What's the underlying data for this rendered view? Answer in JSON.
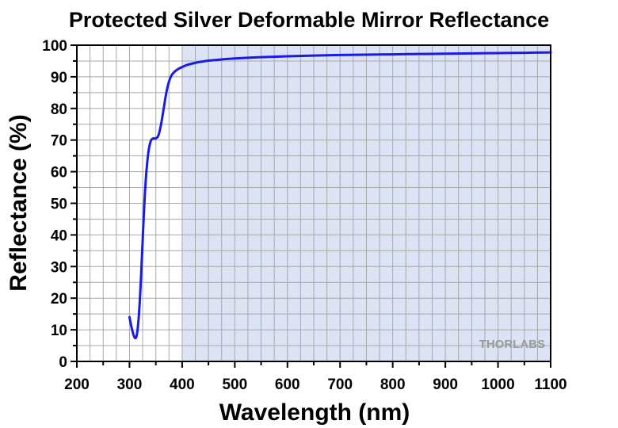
{
  "chart_data": {
    "type": "line",
    "title": "Protected Silver Deformable Mirror Reflectance",
    "xlabel": "Wavelength (nm)",
    "ylabel": "Reflectance (%)",
    "xlim": [
      200,
      1100
    ],
    "ylim": [
      0,
      100
    ],
    "x_ticks": [
      "200",
      "300",
      "400",
      "500",
      "600",
      "700",
      "800",
      "900",
      "1000",
      "1100"
    ],
    "y_ticks": [
      "0",
      "10",
      "20",
      "30",
      "40",
      "50",
      "60",
      "70",
      "80",
      "90",
      "100"
    ],
    "grid": true,
    "shaded_region": {
      "x_start": 400,
      "x_end": 1100,
      "color": "#dbe3f5"
    },
    "watermark": "THORLABS",
    "series": [
      {
        "color": "#1a1ae6",
        "x": [
          300,
          305,
          310,
          314,
          318,
          322,
          326,
          330,
          335,
          340,
          345,
          350,
          355,
          360,
          365,
          370,
          375,
          380,
          385,
          390,
          395,
          400,
          410,
          420,
          430,
          450,
          475,
          500,
          550,
          600,
          650,
          700,
          750,
          800,
          850,
          900,
          950,
          1000,
          1050,
          1100
        ],
        "y": [
          14,
          10,
          7.5,
          8.5,
          15,
          27,
          42,
          55,
          65,
          69.5,
          70.5,
          70.5,
          71.5,
          75,
          80,
          85,
          88.5,
          90.5,
          91.5,
          92.2,
          92.7,
          93.1,
          93.8,
          94.2,
          94.6,
          95.1,
          95.5,
          95.8,
          96.2,
          96.5,
          96.7,
          96.9,
          97.0,
          97.1,
          97.2,
          97.3,
          97.4,
          97.5,
          97.6,
          97.7
        ]
      }
    ]
  }
}
